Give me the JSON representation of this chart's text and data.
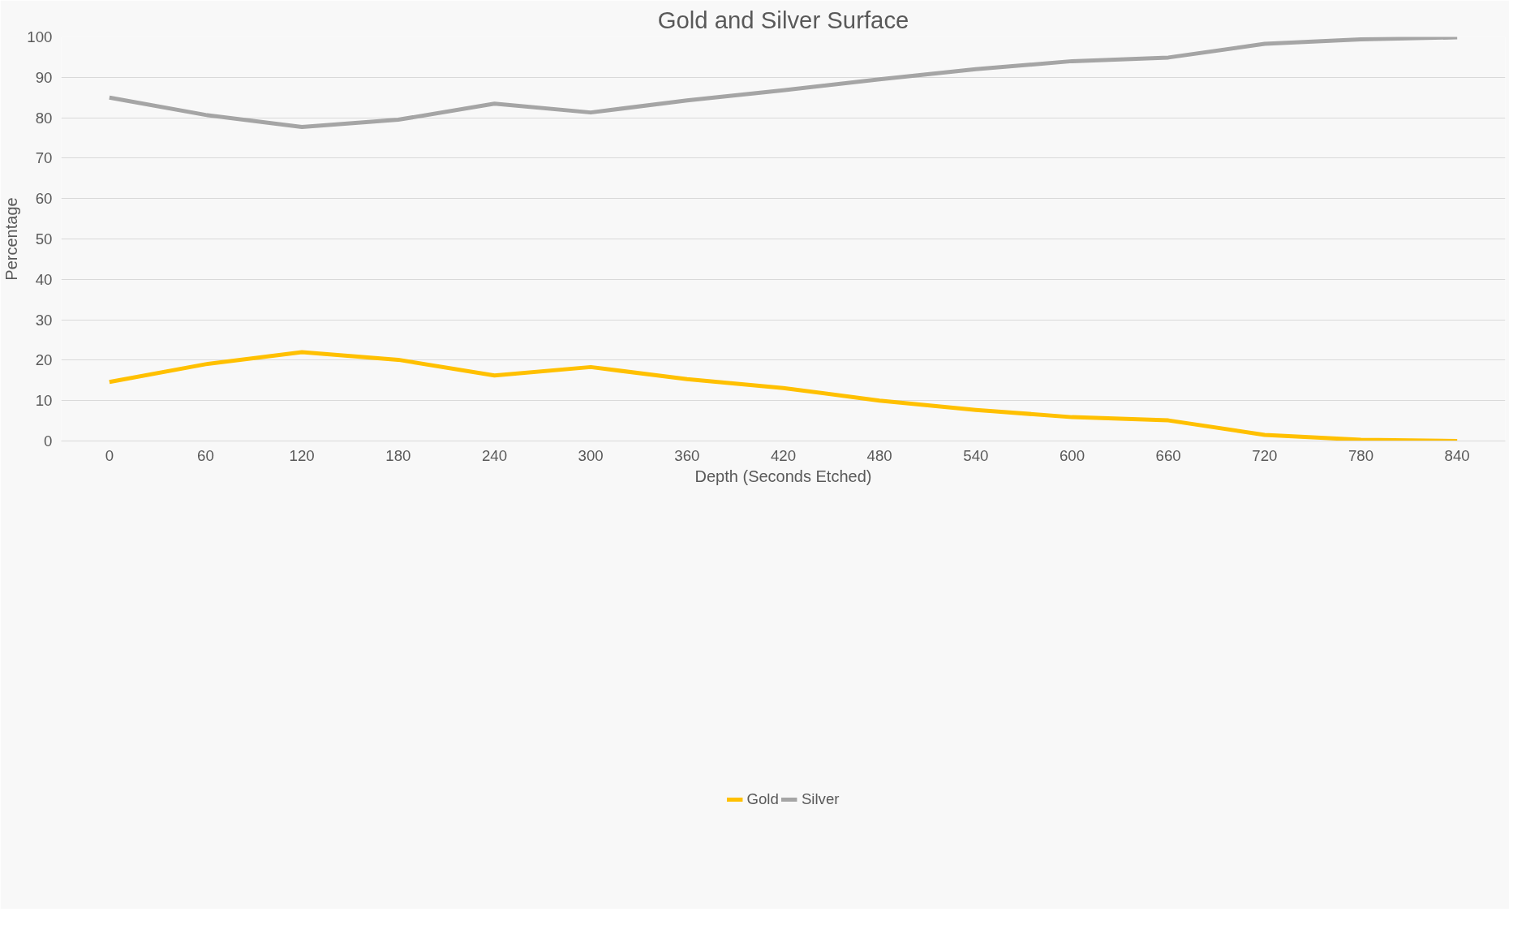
{
  "chart_data": {
    "type": "line",
    "title": "Gold and Silver Surface",
    "xlabel": "Depth (Seconds Etched)",
    "ylabel": "Percentage",
    "categories": [
      "0",
      "60",
      "120",
      "180",
      "240",
      "300",
      "360",
      "420",
      "480",
      "540",
      "600",
      "660",
      "720",
      "780",
      "840"
    ],
    "series": [
      {
        "name": "Gold",
        "color": "#ffc000",
        "values": [
          14.6,
          19.0,
          22.0,
          20.1,
          16.2,
          18.3,
          15.3,
          13.1,
          10.0,
          7.7,
          5.9,
          5.1,
          1.5,
          0.3,
          0.0
        ]
      },
      {
        "name": "Silver",
        "color": "#a5a5a5",
        "values": [
          85.0,
          80.7,
          77.7,
          79.5,
          83.5,
          81.3,
          84.3,
          86.8,
          89.5,
          92.0,
          94.0,
          94.9,
          98.3,
          99.4,
          99.9
        ]
      }
    ],
    "ylim": [
      0,
      100
    ],
    "yticks": [
      0,
      10,
      20,
      30,
      40,
      50,
      60,
      70,
      80,
      90,
      100
    ],
    "grid": "y",
    "legend": "bottom",
    "line_style": "solid",
    "marker": "none"
  }
}
